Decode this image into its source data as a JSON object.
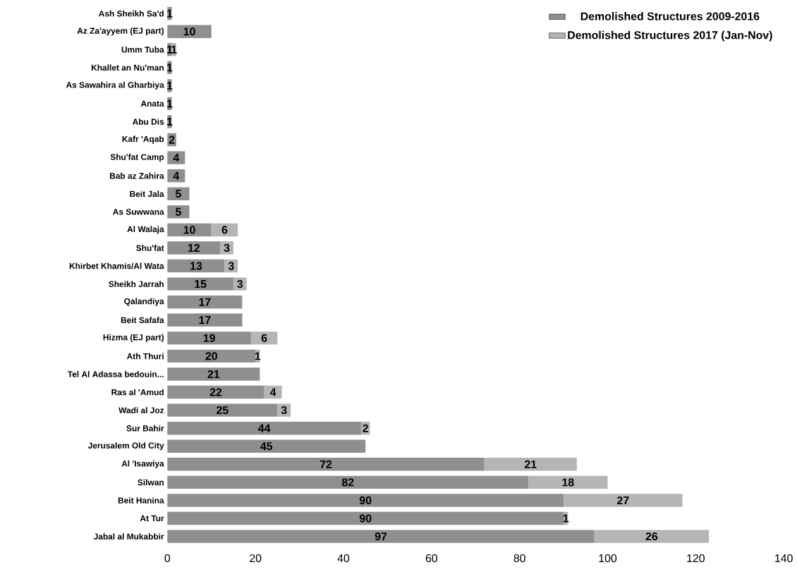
{
  "chart_data": {
    "type": "bar",
    "orientation": "horizontal",
    "stacked": true,
    "data_labels": true,
    "legend": "top right",
    "categories": [
      "Ash Sheikh Sa'd",
      "Az Za'ayyem (EJ part)",
      "Umm Tuba",
      "Khallet an Nu'man",
      "As Sawahira al Gharbiya",
      "Anata",
      "Abu Dis",
      "Kafr 'Aqab",
      "Shu'fat Camp",
      "Bab az Zahira",
      "Beit Jala",
      "As Suwwana",
      "Al Walaja",
      "Shu'fat",
      "Khirbet Khamis/Al Wata",
      "Sheikh Jarrah",
      "Qalandiya",
      "Beit Safafa",
      "Hizma (EJ part)",
      "Ath Thuri",
      "Tel Al Adassa bedouin...",
      "Ras al 'Amud",
      "Wadi al Joz",
      "Sur Bahir",
      "Jerusalem Old City",
      "Al 'Isawiya",
      "Silwan",
      "Beit Hanina",
      "At Tur",
      "Jabal al Mukabbir"
    ],
    "series": [
      {
        "name": "Demolished Structures 2009-2016",
        "color": "#8f8f8f",
        "values": [
          1,
          10,
          1,
          1,
          1,
          1,
          1,
          2,
          4,
          4,
          5,
          5,
          10,
          12,
          13,
          15,
          17,
          17,
          19,
          20,
          21,
          22,
          25,
          44,
          45,
          72,
          82,
          90,
          90,
          97
        ]
      },
      {
        "name": "Demolished Structures 2017 (Jan-Nov)",
        "color": "#b5b5b5",
        "values": [
          null,
          null,
          1,
          null,
          null,
          null,
          null,
          null,
          null,
          null,
          null,
          null,
          6,
          3,
          3,
          3,
          null,
          null,
          6,
          1,
          null,
          4,
          3,
          2,
          null,
          21,
          18,
          27,
          1,
          26
        ]
      }
    ],
    "xlim": [
      0,
      140
    ],
    "xticks": [
      0,
      20,
      40,
      60,
      80,
      100,
      120,
      140
    ]
  }
}
